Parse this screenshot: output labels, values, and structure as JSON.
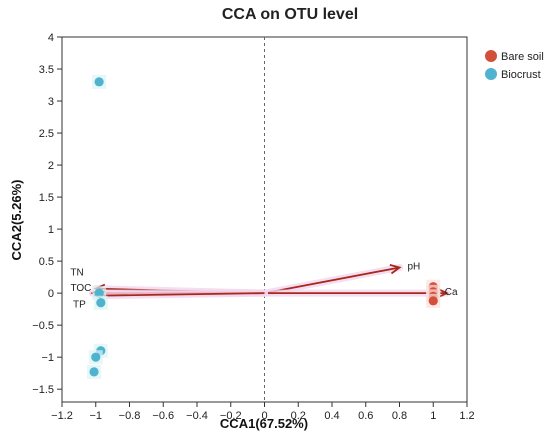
{
  "chart_data": {
    "type": "scatter",
    "title": "CCA on OTU level",
    "xlabel": "CCA1(67.52%)",
    "ylabel": "CCA2(5.26%)",
    "xlim": [
      -1.2,
      1.2
    ],
    "ylim": [
      -1.7,
      4.0
    ],
    "xticks": [
      -1.2,
      -1,
      -0.8,
      -0.6,
      -0.4,
      -0.2,
      0,
      0.2,
      0.4,
      0.6,
      0.8,
      1,
      1.2
    ],
    "yticks": [
      4,
      3.5,
      3,
      2.5,
      2,
      1.5,
      1,
      0.5,
      0,
      -0.5,
      -1,
      -1.5
    ],
    "legend_position": "top-right",
    "reference_lines": {
      "x": 0,
      "y": 0,
      "style": "dashed"
    },
    "series": [
      {
        "name": "Bare soil",
        "color": "#d2503a",
        "points": [
          {
            "x": 1.0,
            "y": 0.1
          },
          {
            "x": 1.0,
            "y": 0.02
          },
          {
            "x": 1.0,
            "y": -0.05
          },
          {
            "x": 1.0,
            "y": -0.12
          }
        ]
      },
      {
        "name": "Biocrust",
        "color": "#4fb3cf",
        "points": [
          {
            "x": -0.98,
            "y": 3.3
          },
          {
            "x": -0.98,
            "y": 0.0
          },
          {
            "x": -0.97,
            "y": -0.15
          },
          {
            "x": -0.97,
            "y": -0.9
          },
          {
            "x": -1.0,
            "y": -1.0
          },
          {
            "x": -1.01,
            "y": -1.23
          }
        ]
      }
    ],
    "vectors": [
      {
        "label": "pH",
        "x": 0.8,
        "y": 0.4
      },
      {
        "label": "Ca",
        "x": 1.08,
        "y": 0.0
      },
      {
        "label": "TN",
        "x": -1.0,
        "y": 0.07
      },
      {
        "label": "TOC",
        "x": -1.02,
        "y": 0.0
      },
      {
        "label": "TP",
        "x": -1.0,
        "y": -0.04
      }
    ],
    "vector_color": "#a8281c"
  }
}
